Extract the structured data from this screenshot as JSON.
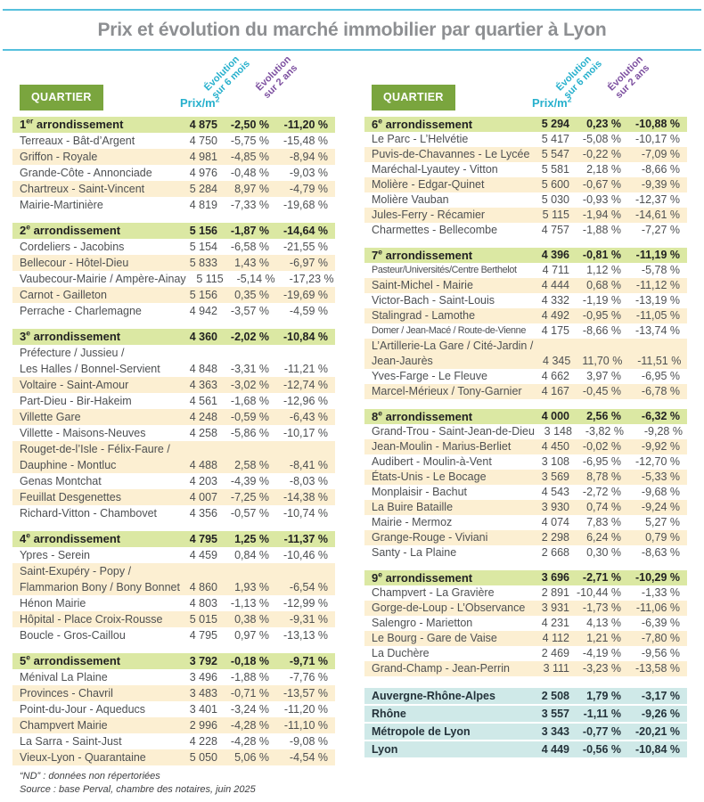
{
  "title": "Prix et évolution du marché immobilier par quartier à Lyon",
  "colors": {
    "accent_cyan": "#27b0cd",
    "accent_purple": "#7d50a0",
    "quartier_badge_green": "#7aa53e",
    "arrondissement_row_green": "#dbe8a3",
    "alt_row_cream": "#fcefd2",
    "summary_row_blue": "#cfe9e8",
    "title_gray": "#8d8f92",
    "rule_cyan": "#56c0dd"
  },
  "table_header": {
    "quartier": "QUARTIER",
    "price": "Prix/m",
    "price_sup": "2",
    "evo6_l1": "Évolution",
    "evo6_l2": "sur 6 mois",
    "evo24_l1": "Évolution",
    "evo24_l2": "sur 2 ans"
  },
  "left_blocks": [
    {
      "num": "1",
      "sup": "er",
      "rest": " arrondissement",
      "price": "4 875",
      "evo6": "-2,50 %",
      "evo24": "-11,20 %",
      "rows": [
        {
          "name": "Terreaux - Bât-d’Argent",
          "price": "4 750",
          "evo6": "-5,75 %",
          "evo24": "-15,48 %"
        },
        {
          "name": "Griffon - Royale",
          "price": "4 981",
          "evo6": "-4,85 %",
          "evo24": "-8,94 %"
        },
        {
          "name": "Grande-Côte - Annonciade",
          "price": "4 976",
          "evo6": "-0,48 %",
          "evo24": "-9,03 %"
        },
        {
          "name": "Chartreux - Saint-Vincent",
          "price": "5 284",
          "evo6": "8,97 %",
          "evo24": "-4,79 %"
        },
        {
          "name": "Mairie-Martinière",
          "price": "4 819",
          "evo6": "-7,33 %",
          "evo24": "-19,68 %"
        }
      ]
    },
    {
      "num": "2",
      "sup": "e",
      "rest": " arrondissement",
      "price": "5 156",
      "evo6": "-1,87 %",
      "evo24": "-14,64 %",
      "rows": [
        {
          "name": "Cordeliers - Jacobins",
          "price": "5 154",
          "evo6": "-6,58 %",
          "evo24": "-21,55 %"
        },
        {
          "name": "Bellecour - Hôtel-Dieu",
          "price": "5 833",
          "evo6": "1,43 %",
          "evo24": "-6,97 %"
        },
        {
          "name": "Vaubecour-Mairie / Ampère-Ainay",
          "price": "5 115",
          "evo6": "-5,14 %",
          "evo24": "-17,23 %"
        },
        {
          "name": "Carnot - Gailleton",
          "price": "5 156",
          "evo6": "0,35 %",
          "evo24": "-19,69 %"
        },
        {
          "name": "Perrache - Charlemagne",
          "price": "4 942",
          "evo6": "-3,57 %",
          "evo24": "-4,59 %"
        }
      ]
    },
    {
      "num": "3",
      "sup": "e",
      "rest": " arrondissement",
      "price": "4 360",
      "evo6": "-2,02 %",
      "evo24": "-10,84 %",
      "rows": [
        {
          "name": "Préfecture / Jussieu /",
          "name2": "Les Halles / Bonnel-Servient",
          "price": "4 848",
          "evo6": "-3,31 %",
          "evo24": "-11,21 %"
        },
        {
          "name": "Voltaire - Saint-Amour",
          "price": "4 363",
          "evo6": "-3,02 %",
          "evo24": "-12,74 %"
        },
        {
          "name": "Part-Dieu - Bir-Hakeim",
          "price": "4 561",
          "evo6": "-1,68 %",
          "evo24": "-12,96 %"
        },
        {
          "name": "Villette Gare",
          "price": "4 248",
          "evo6": "-0,59 %",
          "evo24": "-6,43 %"
        },
        {
          "name": "Villette - Maisons-Neuves",
          "price": "4 258",
          "evo6": "-5,86 %",
          "evo24": "-10,17 %"
        },
        {
          "name": "Rouget-de-l’Isle - Félix-Faure /",
          "name2": "Dauphine - Montluc",
          "price": "4 488",
          "evo6": "2,58 %",
          "evo24": "-8,41 %"
        },
        {
          "name": "Genas Montchat",
          "price": "4 203",
          "evo6": "-4,39 %",
          "evo24": "-8,03 %"
        },
        {
          "name": "Feuillat Desgenettes",
          "price": "4 007",
          "evo6": "-7,25 %",
          "evo24": "-14,38 %"
        },
        {
          "name": "Richard-Vitton - Chambovet",
          "price": "4 356",
          "evo6": "-0,57 %",
          "evo24": "-10,74 %"
        }
      ]
    },
    {
      "num": "4",
      "sup": "e",
      "rest": " arrondissement",
      "price": "4 795",
      "evo6": "1,25 %",
      "evo24": "-11,37 %",
      "rows": [
        {
          "name": "Ypres - Serein",
          "price": "4 459",
          "evo6": "0,84 %",
          "evo24": "-10,46 %"
        },
        {
          "name": "Saint-Exupéry - Popy /",
          "name2": "Flammarion Bony / Bony Bonnet",
          "price": "4 860",
          "evo6": "1,93 %",
          "evo24": "-6,54 %"
        },
        {
          "name": "Hénon Mairie",
          "price": "4 803",
          "evo6": "-1,13 %",
          "evo24": "-12,99 %"
        },
        {
          "name": "Hôpital - Place Croix-Rousse",
          "price": "5 015",
          "evo6": "0,38 %",
          "evo24": "-9,31 %"
        },
        {
          "name": "Boucle - Gros-Caillou",
          "price": "4 795",
          "evo6": "0,97 %",
          "evo24": "-13,13 %"
        }
      ]
    },
    {
      "num": "5",
      "sup": "e",
      "rest": " arrondissement",
      "price": "3 792",
      "evo6": "-0,18 %",
      "evo24": "-9,71 %",
      "rows": [
        {
          "name": "Ménival La Plaine",
          "price": "3 496",
          "evo6": "-1,88 %",
          "evo24": "-7,76 %"
        },
        {
          "name": "Provinces - Chavril",
          "price": "3 483",
          "evo6": "-0,71 %",
          "evo24": "-13,57 %"
        },
        {
          "name": "Point-du-Jour - Aqueducs",
          "price": "3 401",
          "evo6": "-3,24 %",
          "evo24": "-11,20 %"
        },
        {
          "name": "Champvert Mairie",
          "price": "2 996",
          "evo6": "-4,28 %",
          "evo24": "-11,10 %"
        },
        {
          "name": "La Sarra - Saint-Just",
          "price": "4 228",
          "evo6": "-4,28 %",
          "evo24": "-9,08 %"
        },
        {
          "name": "Vieux-Lyon - Quarantaine",
          "price": "5 050",
          "evo6": "5,06 %",
          "evo24": "-4,54 %"
        }
      ]
    }
  ],
  "right_blocks": [
    {
      "num": "6",
      "sup": "e",
      "rest": " arrondissement",
      "price": "5 294",
      "evo6": "0,23 %",
      "evo24": "-10,88 %",
      "rows": [
        {
          "name": "Le Parc - L’Helvétie",
          "price": "5 417",
          "evo6": "-5,08 %",
          "evo24": "-10,17 %"
        },
        {
          "name": "Puvis-de-Chavannes - Le Lycée",
          "price": "5 547",
          "evo6": "-0,22 %",
          "evo24": "-7,09 %"
        },
        {
          "name": "Maréchal-Lyautey - Vitton",
          "price": "5 581",
          "evo6": "2,18 %",
          "evo24": "-8,66 %"
        },
        {
          "name": "Molière - Edgar-Quinet",
          "price": "5 600",
          "evo6": "-0,67 %",
          "evo24": "-9,39 %"
        },
        {
          "name": "Molière Vauban",
          "price": "5 030",
          "evo6": "-0,93 %",
          "evo24": "-12,37 %"
        },
        {
          "name": "Jules-Ferry - Récamier",
          "price": "5 115",
          "evo6": "-1,94 %",
          "evo24": "-14,61 %"
        },
        {
          "name": "Charmettes - Bellecombe",
          "price": "4 757",
          "evo6": "-1,88 %",
          "evo24": "-7,27 %"
        }
      ]
    },
    {
      "num": "7",
      "sup": "e",
      "rest": " arrondissement",
      "price": "4 396",
      "evo6": "-0,81 %",
      "evo24": "-11,19 %",
      "rows": [
        {
          "name": "Pasteur/Universités/Centre Berthelot",
          "narrow": true,
          "price": "4 711",
          "evo6": "1,12 %",
          "evo24": "-5,78 %"
        },
        {
          "name": "Saint-Michel - Mairie",
          "price": "4 444",
          "evo6": "0,68 %",
          "evo24": "-11,12 %"
        },
        {
          "name": "Victor-Bach - Saint-Louis",
          "price": "4 332",
          "evo6": "-1,19 %",
          "evo24": "-13,19 %"
        },
        {
          "name": "Stalingrad - Lamothe",
          "price": "4 492",
          "evo6": "-0,95 %",
          "evo24": "-11,05 %"
        },
        {
          "name": "Domer / Jean-Macé / Route-de-Vienne",
          "narrow": true,
          "price": "4 175",
          "evo6": "-8,66 %",
          "evo24": "-13,74 %"
        },
        {
          "name": "L’Artillerie-La Gare / Cité-Jardin /",
          "name2": "Jean-Jaurès",
          "price": "4 345",
          "evo6": "11,70 %",
          "evo24": "-11,51 %"
        },
        {
          "name": "Yves-Farge - Le Fleuve",
          "price": "4 662",
          "evo6": "3,97 %",
          "evo24": "-6,95 %"
        },
        {
          "name": "Marcel-Mérieux / Tony-Garnier",
          "price": "4 167",
          "evo6": "-0,45 %",
          "evo24": "-6,78 %"
        }
      ]
    },
    {
      "num": "8",
      "sup": "e",
      "rest": " arrondissement",
      "price": "4 000",
      "evo6": "2,56 %",
      "evo24": "-6,32 %",
      "rows": [
        {
          "name": "Grand-Trou - Saint-Jean-de-Dieu",
          "price": "3 148",
          "evo6": "-3,82 %",
          "evo24": "-9,28 %"
        },
        {
          "name": "Jean-Moulin - Marius-Berliet",
          "price": "4 450",
          "evo6": "-0,02 %",
          "evo24": "-9,92 %"
        },
        {
          "name": "Audibert - Moulin-à-Vent",
          "price": "3 108",
          "evo6": "-6,95 %",
          "evo24": "-12,70 %"
        },
        {
          "name": "États-Unis - Le Bocage",
          "price": "3 569",
          "evo6": "8,78 %",
          "evo24": "-5,33 %"
        },
        {
          "name": "Monplaisir - Bachut",
          "price": "4 543",
          "evo6": "-2,72 %",
          "evo24": "-9,68 %"
        },
        {
          "name": "La Buire Bataille",
          "price": "3 930",
          "evo6": "0,74 %",
          "evo24": "-9,24 %"
        },
        {
          "name": "Mairie - Mermoz",
          "price": "4 074",
          "evo6": "7,83 %",
          "evo24": "5,27 %"
        },
        {
          "name": "Grange-Rouge - Viviani",
          "price": "2 298",
          "evo6": "6,24 %",
          "evo24": "0,79 %"
        },
        {
          "name": "Santy - La Plaine",
          "price": "2 668",
          "evo6": "0,30 %",
          "evo24": "-8,63 %"
        }
      ]
    },
    {
      "num": "9",
      "sup": "e",
      "rest": " arrondissement",
      "price": "3 696",
      "evo6": "-2,71 %",
      "evo24": "-10,29 %",
      "rows": [
        {
          "name": "Champvert - La Gravière",
          "price": "2 891",
          "evo6": "-10,44 %",
          "evo24": "-1,33 %"
        },
        {
          "name": "Gorge-de-Loup - L’Observance",
          "price": "3 931",
          "evo6": "-1,73 %",
          "evo24": "-11,06 %"
        },
        {
          "name": "Salengro - Marietton",
          "price": "4 231",
          "evo6": "4,13 %",
          "evo24": "-6,39 %"
        },
        {
          "name": "Le Bourg - Gare de Vaise",
          "price": "4 112",
          "evo6": "1,21 %",
          "evo24": "-7,80 %"
        },
        {
          "name": "La Duchère",
          "price": "2 469",
          "evo6": "-4,19 %",
          "evo24": "-9,56 %"
        },
        {
          "name": "Grand-Champ - Jean-Perrin",
          "price": "3 111",
          "evo6": "-3,23 %",
          "evo24": "-13,58 %"
        }
      ]
    }
  ],
  "summary_rows": [
    {
      "name": "Auvergne-Rhône-Alpes",
      "price": "2 508",
      "evo6": "1,79 %",
      "evo24": "-3,17 %"
    },
    {
      "name": "Rhône",
      "price": "3 557",
      "evo6": "-1,11 %",
      "evo24": "-9,26 %"
    },
    {
      "name": "Métropole de Lyon",
      "price": "3 343",
      "evo6": "-0,77 %",
      "evo24": "-20,21 %"
    },
    {
      "name": "Lyon",
      "price": "4 449",
      "evo6": "-0,56 %",
      "evo24": "-10,84 %"
    }
  ],
  "footnotes": {
    "line1": "“ND” : données non répertoriées",
    "line2": "Source : base Perval, chambre des notaires, juin 2025"
  }
}
